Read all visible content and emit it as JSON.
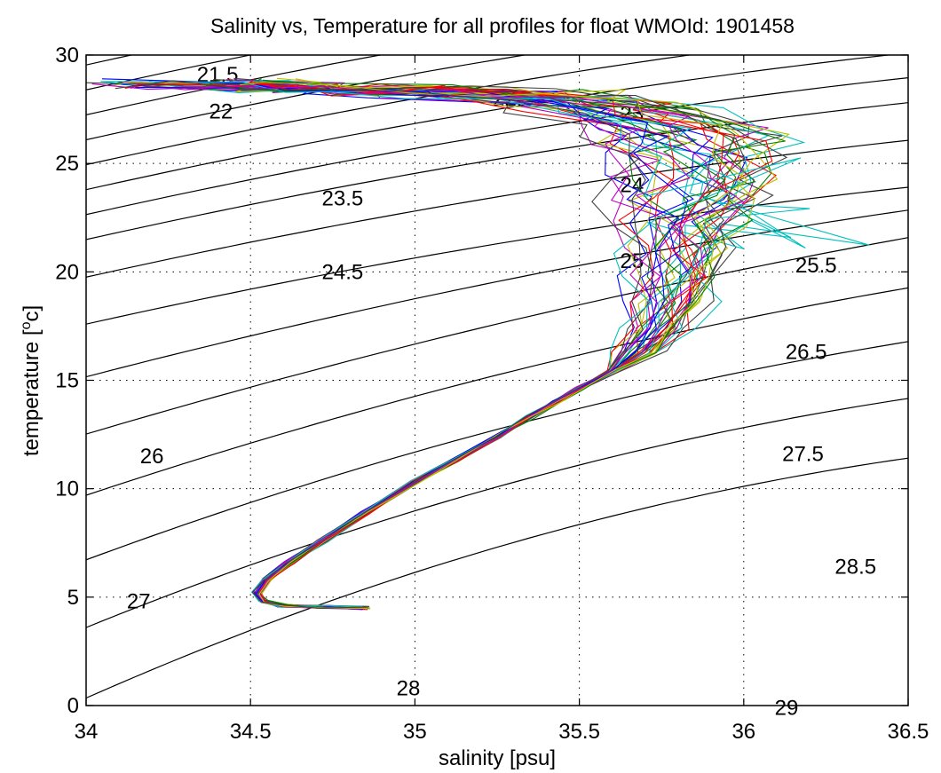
{
  "chart_data": {
    "type": "line",
    "title": "Salinity vs, Temperature for all profiles for float WMOId: 1901458",
    "xlabel": "salinity [psu]",
    "ylabel_main": "temperature [",
    "ylabel_sup": "o",
    "ylabel_end": "c]",
    "xlim": [
      34,
      36.5
    ],
    "ylim": [
      0,
      30
    ],
    "xticks": [
      34,
      34.5,
      35,
      35.5,
      36,
      36.5
    ],
    "xtick_labels": [
      "34",
      "34.5",
      "35",
      "35.5",
      "36",
      "36.5"
    ],
    "yticks": [
      0,
      5,
      10,
      15,
      20,
      25,
      30
    ],
    "ytick_labels": [
      "0",
      "5",
      "10",
      "15",
      "20",
      "25",
      "30"
    ],
    "grid": true,
    "density_contours": {
      "levels": [
        21.5,
        22,
        22.5,
        23,
        23.5,
        24,
        24.5,
        25,
        25.5,
        26,
        26.5,
        27,
        27.5,
        28,
        28.5,
        29
      ],
      "labels": [
        {
          "text": "21.5",
          "s": 34.4,
          "t": 29.1
        },
        {
          "text": "22",
          "s": 34.41,
          "t": 27.4
        },
        {
          "text": "22.5",
          "s": 35.3,
          "t": 28.0
        },
        {
          "text": "23",
          "s": 35.66,
          "t": 27.3
        },
        {
          "text": "23.5",
          "s": 34.78,
          "t": 23.4
        },
        {
          "text": "24",
          "s": 35.66,
          "t": 24.0
        },
        {
          "text": "24.5",
          "s": 34.78,
          "t": 20.0
        },
        {
          "text": "25",
          "s": 35.66,
          "t": 20.5
        },
        {
          "text": "25.5",
          "s": 36.22,
          "t": 20.3
        },
        {
          "text": "26",
          "s": 34.2,
          "t": 11.5
        },
        {
          "text": "26.5",
          "s": 36.19,
          "t": 16.3
        },
        {
          "text": "27",
          "s": 34.16,
          "t": 4.8
        },
        {
          "text": "27.5",
          "s": 36.18,
          "t": 11.6
        },
        {
          "text": "28",
          "s": 34.98,
          "t": 0.8
        },
        {
          "text": "28.5",
          "s": 36.34,
          "t": 6.4
        },
        {
          "text": "29",
          "s": 36.13,
          "t": -0.1
        }
      ]
    },
    "profile_core": [
      [
        34.85,
        4.5
      ],
      [
        34.72,
        4.55
      ],
      [
        34.6,
        4.6
      ],
      [
        34.54,
        4.8
      ],
      [
        34.52,
        5.2
      ],
      [
        34.55,
        5.8
      ],
      [
        34.62,
        6.6
      ],
      [
        34.72,
        7.6
      ],
      [
        34.85,
        8.9
      ],
      [
        35.0,
        10.3
      ],
      [
        35.12,
        11.3
      ],
      [
        35.25,
        12.4
      ],
      [
        35.35,
        13.3
      ],
      [
        35.43,
        14.0
      ],
      [
        35.5,
        14.6
      ],
      [
        35.6,
        15.4
      ],
      [
        35.68,
        16.3
      ],
      [
        35.74,
        17.4
      ],
      [
        35.78,
        18.6
      ],
      [
        35.8,
        19.8
      ],
      [
        35.81,
        21.0
      ],
      [
        35.82,
        22.3
      ],
      [
        35.84,
        23.4
      ],
      [
        35.86,
        24.3
      ],
      [
        35.87,
        25.3
      ],
      [
        35.85,
        26.1
      ],
      [
        35.76,
        26.8
      ],
      [
        35.62,
        27.4
      ],
      [
        35.45,
        27.9
      ],
      [
        35.25,
        28.2
      ],
      [
        35.05,
        28.3
      ],
      [
        34.85,
        28.4
      ],
      [
        34.65,
        28.5
      ],
      [
        34.45,
        28.6
      ],
      [
        34.35,
        28.7
      ]
    ],
    "series_colors": [
      "#0000ff",
      "#008000",
      "#ff0000",
      "#00bfbf",
      "#bf00bf",
      "#bfbf00",
      "#404040"
    ],
    "profile_count": 42
  }
}
